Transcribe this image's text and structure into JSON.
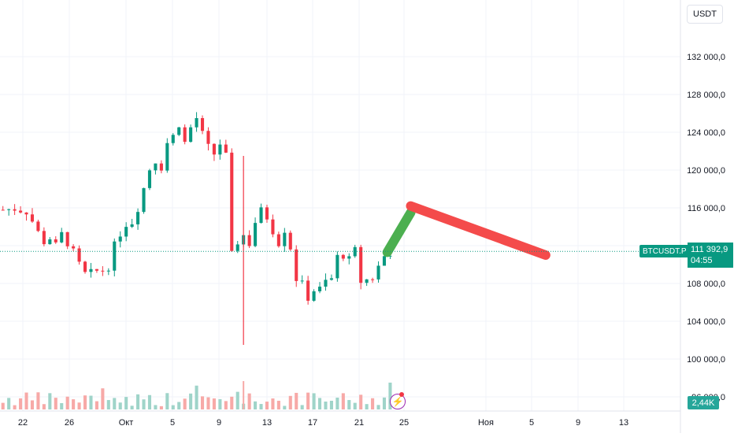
{
  "toolbar": {
    "currency": "USDT"
  },
  "ticker": {
    "symbol": "BTCUSDT.P",
    "last_price": "111 392,9",
    "countdown": "04:55",
    "volume_label": "2,44K",
    "up_color": "#089981",
    "down_color": "#f23645",
    "volume_up_color": "#9fd4c9",
    "volume_down_color": "#f7a9a7"
  },
  "chart_data": {
    "type": "candlestick",
    "y_ticks": [
      "96 000,0",
      "100 000,0",
      "104 000,0",
      "108 000,0",
      "112 000,0",
      "116 000,0",
      "120 000,0",
      "124 000,0",
      "128 000,0",
      "132 000,0"
    ],
    "y_tick_values": [
      96000,
      100000,
      104000,
      108000,
      112000,
      116000,
      120000,
      124000,
      128000,
      132000
    ],
    "x_ticks": [
      "22",
      "26",
      "Окт",
      "5",
      "9",
      "13",
      "17",
      "21",
      "25",
      "Ноя",
      "5",
      "9",
      "13"
    ],
    "ylim": [
      94000,
      136000
    ],
    "last_price": 111392.9,
    "price_path": [
      [
        0,
        115800
      ],
      [
        2,
        115900
      ],
      [
        4,
        115600
      ],
      [
        5,
        114600
      ],
      [
        6,
        113400
      ],
      [
        7,
        112400
      ],
      [
        8,
        112800
      ],
      [
        9,
        112000
      ],
      [
        10,
        113200
      ],
      [
        11,
        112300
      ],
      [
        12,
        111300
      ],
      [
        13,
        110000
      ],
      [
        14,
        109000
      ],
      [
        15,
        109100
      ],
      [
        16,
        109300
      ],
      [
        17,
        109400
      ],
      [
        18,
        109800
      ],
      [
        19,
        112000
      ],
      [
        20,
        113300
      ],
      [
        21,
        114300
      ],
      [
        22,
        114500
      ],
      [
        23,
        116000
      ],
      [
        24,
        118100
      ],
      [
        25,
        120100
      ],
      [
        26,
        121000
      ],
      [
        27,
        120300
      ],
      [
        28,
        122900
      ],
      [
        29,
        123600
      ],
      [
        30,
        124900
      ],
      [
        31,
        122900
      ],
      [
        32,
        124500
      ],
      [
        33,
        125500
      ],
      [
        34,
        123800
      ],
      [
        35,
        122400
      ],
      [
        36,
        121700
      ],
      [
        37,
        122800
      ],
      [
        38,
        121500
      ],
      [
        39,
        111000
      ],
      [
        40,
        112400
      ],
      [
        41,
        113100
      ],
      [
        42,
        112200
      ],
      [
        43,
        114500
      ],
      [
        44,
        115700
      ],
      [
        45,
        115000
      ],
      [
        46,
        113600
      ],
      [
        47,
        112300
      ],
      [
        48,
        113700
      ],
      [
        49,
        111800
      ],
      [
        50,
        108500
      ],
      [
        51,
        107900
      ],
      [
        52,
        106500
      ],
      [
        53,
        107300
      ],
      [
        54,
        107400
      ],
      [
        55,
        108200
      ],
      [
        56,
        108500
      ],
      [
        57,
        110800
      ],
      [
        58,
        111000
      ],
      [
        59,
        110500
      ],
      [
        60,
        111500
      ],
      [
        61,
        108200
      ],
      [
        62,
        108400
      ],
      [
        63,
        108600
      ],
      [
        64,
        109800
      ],
      [
        65,
        110900
      ],
      [
        66,
        111300
      ]
    ],
    "projection": [
      {
        "name": "",
        "color": "#4caf50",
        "points": [
          [
            66,
            111300
          ],
          [
            70,
            115500
          ]
        ]
      },
      {
        "name": "",
        "color": "#f44b4b",
        "points": [
          [
            70,
            116200
          ],
          [
            93,
            111000
          ]
        ]
      }
    ]
  }
}
